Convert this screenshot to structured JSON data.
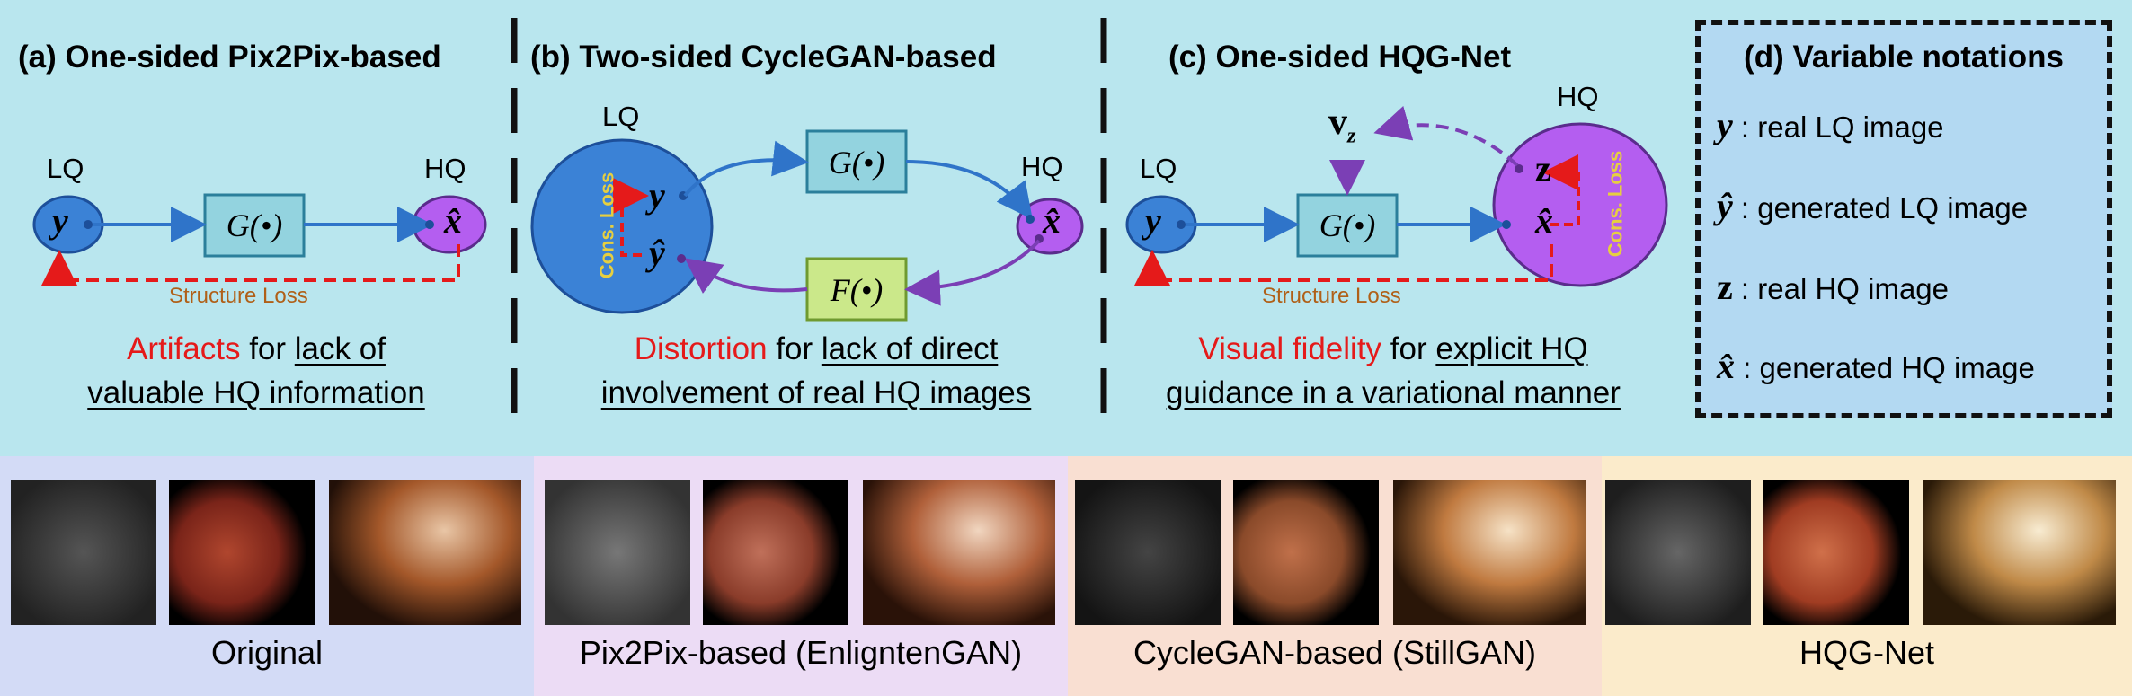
{
  "panels": {
    "a": {
      "title": "(a) One-sided Pix2Pix-based",
      "lq": "LQ",
      "hq": "HQ",
      "gen": "G(•)",
      "y": "y",
      "xhat": "x̂",
      "loss": "Structure Loss",
      "note_red": "Artifacts",
      "note_mid": " for ",
      "note_u1": "lack of",
      "note_u2": "valuable HQ information"
    },
    "b": {
      "title": "(b) Two-sided CycleGAN-based",
      "lq": "LQ",
      "hq": "HQ",
      "gen": "G(•)",
      "gen2": "F(•)",
      "y": "y",
      "yhat": "ŷ",
      "xhat": "x̂",
      "cons": "Cons. Loss",
      "note_red": "Distortion",
      "note_mid": " for ",
      "note_u1": "lack of direct",
      "note_u2": "involvement of real HQ images"
    },
    "c": {
      "title": "(c) One-sided HQG-Net",
      "lq": "LQ",
      "hq": "HQ",
      "gen": "G(•)",
      "y": "y",
      "xhat": "x̂",
      "z": "z",
      "vz": "v",
      "vz_sub": "z",
      "cons": "Cons. Loss",
      "loss": "Structure Loss",
      "note_red": "Visual fidelity",
      "note_mid": " for ",
      "note_u1": "explicit HQ",
      "note_u2": "guidance in a variational manner"
    },
    "d": {
      "title": "(d) Variable notations",
      "rows": [
        {
          "sym": "y",
          "text": " : real LQ image"
        },
        {
          "sym": "ŷ",
          "text": " : generated LQ image"
        },
        {
          "sym": "z",
          "text": " : real HQ image"
        },
        {
          "sym": "x̂",
          "text": " : generated HQ image"
        }
      ]
    }
  },
  "results": [
    {
      "label": "Original",
      "bg": "#d3dbf6"
    },
    {
      "label": "Pix2Pix-based (EnligntenGAN)",
      "bg": "#ecdcf5"
    },
    {
      "label": "CycleGAN-based (StillGAN)",
      "bg": "#f9dfd2"
    },
    {
      "label": "HQG-Net",
      "bg": "#fbebcb"
    }
  ],
  "colors": {
    "blue_node": "#3b82d6",
    "purple_node": "#b45ef0",
    "gen_box": "#93d3df",
    "gen_box2": "#cbe88a",
    "red": "#e51a1a",
    "loss_text": "#b06018",
    "cons_text": "#e6cf40"
  }
}
